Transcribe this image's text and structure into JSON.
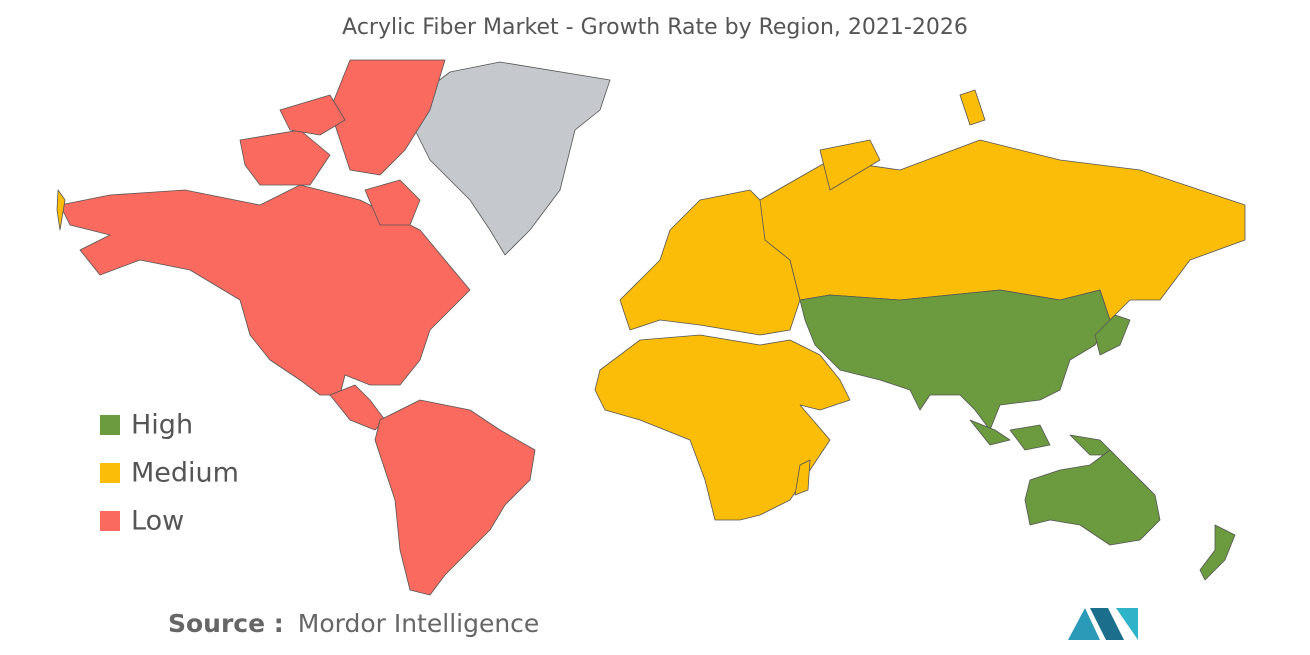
{
  "title": "Acrylic Fiber Market - Growth Rate by Region, 2021-2026",
  "legend": [
    {
      "label": "High",
      "color": "#6b9a3f"
    },
    {
      "label": "Medium",
      "color": "#fbbd08"
    },
    {
      "label": "Low",
      "color": "#fa6a5e"
    }
  ],
  "source": {
    "label": "Source :",
    "text": "Mordor Intelligence"
  }
}
